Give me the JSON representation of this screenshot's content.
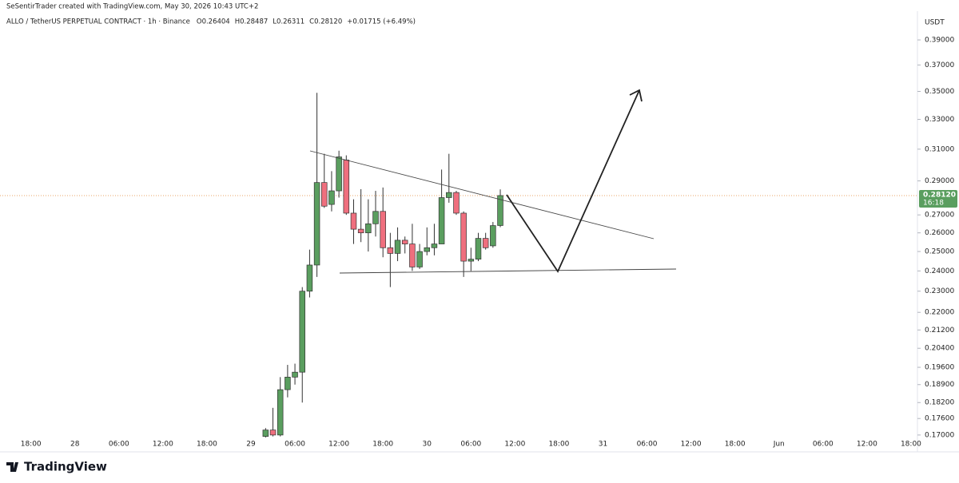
{
  "chart_data": {
    "type": "candlestick",
    "credit": "SeSentirTrader created with TradingView.com, May 30, 2026 10:43 UTC+2",
    "symbol": "ALLO / TetherUS PERPETUAL CONTRACT · 1h · Binance",
    "ohlc_header": [
      "O0.26404",
      "H0.28487",
      "L0.26311",
      "C0.28120",
      "+0.01715 (+6.49%)"
    ],
    "currency": "USDT",
    "brand": "TradingView",
    "current_price": {
      "value": 0.2812,
      "label": "0.28120"
    },
    "countdown": "16:18",
    "log_scale": true,
    "grid": false,
    "up_color": "#5a9e5f",
    "down_color": "#ef6f7e",
    "categories": [
      null,
      null,
      "18:00",
      null,
      null,
      null,
      null,
      null,
      "28",
      null,
      null,
      null,
      null,
      null,
      "06:00",
      null,
      null,
      null,
      null,
      null,
      "12:00",
      null,
      null,
      null,
      null,
      null,
      "18:00",
      null,
      null,
      null,
      null,
      null,
      "29",
      null,
      null,
      null,
      null,
      null,
      "06:00",
      null,
      null,
      null,
      null,
      null,
      "12:00",
      null,
      null,
      null,
      null,
      null,
      "18:00",
      null,
      null,
      null,
      null,
      null,
      "30",
      null,
      null,
      null,
      null,
      null,
      "06:00",
      null,
      null,
      null,
      null,
      null,
      "12:00",
      null,
      null,
      null,
      null,
      null,
      "18:00",
      null,
      null,
      null,
      null,
      null,
      "31",
      null,
      null,
      null,
      null,
      null,
      "06:00",
      null,
      null,
      null,
      null,
      null,
      "12:00",
      null,
      null,
      null,
      null,
      null,
      "18:00",
      null,
      null,
      null,
      null,
      null,
      "Jun",
      null,
      null,
      null,
      null,
      null,
      "06:00",
      null,
      null,
      null,
      null,
      null,
      "12:00",
      null,
      null,
      null,
      null,
      null,
      "18:00",
      null
    ],
    "open": [
      null,
      null,
      null,
      null,
      null,
      null,
      null,
      null,
      null,
      null,
      null,
      null,
      null,
      null,
      null,
      null,
      null,
      null,
      null,
      null,
      null,
      null,
      null,
      null,
      null,
      null,
      null,
      null,
      null,
      null,
      null,
      null,
      null,
      null,
      0.1695,
      0.1718,
      0.17,
      0.187,
      0.192,
      0.194,
      0.23,
      0.243,
      0.289,
      0.276,
      0.284,
      0.303,
      0.271,
      0.262,
      0.26,
      0.265,
      0.272,
      0.252,
      0.249,
      0.256,
      0.254,
      0.242,
      0.25,
      0.252,
      0.254,
      0.28,
      0.283,
      0.271,
      0.245,
      0.246,
      0.257,
      0.253,
      0.26404,
      null,
      null,
      null,
      null,
      null,
      null,
      null,
      null,
      null,
      null,
      null,
      null,
      null,
      null,
      null,
      null,
      null,
      null,
      null,
      null,
      null,
      null,
      null,
      null,
      null,
      null,
      null,
      null,
      null,
      null,
      null,
      null,
      null,
      null,
      null,
      null,
      null,
      null,
      null,
      null,
      null,
      null,
      null,
      null,
      null,
      null,
      null,
      null,
      null,
      null,
      null,
      null,
      null,
      null,
      null,
      null,
      null
    ],
    "high": [
      null,
      null,
      null,
      null,
      null,
      null,
      null,
      null,
      null,
      null,
      null,
      null,
      null,
      null,
      null,
      null,
      null,
      null,
      null,
      null,
      null,
      null,
      null,
      null,
      null,
      null,
      null,
      null,
      null,
      null,
      null,
      null,
      null,
      null,
      0.1725,
      0.18,
      0.192,
      0.197,
      0.1975,
      0.232,
      0.251,
      0.349,
      0.307,
      0.296,
      0.309,
      0.306,
      0.279,
      0.285,
      0.279,
      0.284,
      0.286,
      0.26,
      0.263,
      0.258,
      0.265,
      0.254,
      0.263,
      0.265,
      0.297,
      0.307,
      0.284,
      0.272,
      0.252,
      0.26,
      0.26,
      0.266,
      0.28487,
      null,
      null,
      null,
      null,
      null,
      null,
      null,
      null,
      null,
      null,
      null,
      null,
      null,
      null,
      null,
      null,
      null,
      null,
      null,
      null,
      null,
      null,
      null,
      null,
      null,
      null,
      null,
      null,
      null,
      null,
      null,
      null,
      null,
      null,
      null,
      null,
      null,
      null,
      null,
      null,
      null,
      null,
      null,
      null,
      null,
      null,
      null,
      null,
      null,
      null,
      null,
      null,
      null,
      null,
      null,
      null,
      null
    ],
    "low": [
      null,
      null,
      null,
      null,
      null,
      null,
      null,
      null,
      null,
      null,
      null,
      null,
      null,
      null,
      null,
      null,
      null,
      null,
      null,
      null,
      null,
      null,
      null,
      null,
      null,
      null,
      null,
      null,
      null,
      null,
      null,
      null,
      null,
      null,
      0.169,
      0.1695,
      0.1695,
      0.184,
      0.189,
      0.182,
      0.227,
      0.237,
      0.274,
      0.272,
      0.28,
      0.27,
      0.254,
      0.255,
      0.25,
      0.258,
      0.247,
      0.232,
      0.245,
      0.249,
      0.24,
      0.241,
      0.248,
      0.248,
      0.254,
      0.277,
      0.27,
      0.237,
      0.24,
      0.245,
      0.251,
      0.252,
      0.26311,
      null,
      null,
      null,
      null,
      null,
      null,
      null,
      null,
      null,
      null,
      null,
      null,
      null,
      null,
      null,
      null,
      null,
      null,
      null,
      null,
      null,
      null,
      null,
      null,
      null,
      null,
      null,
      null,
      null,
      null,
      null,
      null,
      null,
      null,
      null,
      null,
      null,
      null,
      null,
      null,
      null,
      null,
      null,
      null,
      null,
      null,
      null,
      null,
      null,
      null,
      null,
      null,
      null,
      null,
      null,
      null,
      null
    ],
    "close": [
      null,
      null,
      null,
      null,
      null,
      null,
      null,
      null,
      null,
      null,
      null,
      null,
      null,
      null,
      null,
      null,
      null,
      null,
      null,
      null,
      null,
      null,
      null,
      null,
      null,
      null,
      null,
      null,
      null,
      null,
      null,
      null,
      null,
      null,
      0.1718,
      0.17,
      0.187,
      0.192,
      0.194,
      0.23,
      0.243,
      0.289,
      0.275,
      0.284,
      0.305,
      0.271,
      0.262,
      0.26,
      0.265,
      0.272,
      0.252,
      0.249,
      0.256,
      0.254,
      0.242,
      0.25,
      0.252,
      0.254,
      0.28,
      0.283,
      0.271,
      0.245,
      0.246,
      0.257,
      0.252,
      0.264,
      0.2812,
      null,
      null,
      null,
      null,
      null,
      null,
      null,
      null,
      null,
      null,
      null,
      null,
      null,
      null,
      null,
      null,
      null,
      null,
      null,
      null,
      null,
      null,
      null,
      null,
      null,
      null,
      null,
      null,
      null,
      null,
      null,
      null,
      null,
      null,
      null,
      null,
      null,
      null,
      null,
      null,
      null,
      null,
      null,
      null,
      null,
      null,
      null,
      null,
      null,
      null,
      null,
      null,
      null,
      null,
      null,
      null,
      null
    ],
    "ylim": [
      0.1694,
      0.4136
    ],
    "yticks": [
      {
        "value": 0.39,
        "label": "0.39000"
      },
      {
        "value": 0.37,
        "label": "0.37000"
      },
      {
        "value": 0.35,
        "label": "0.35000"
      },
      {
        "value": 0.33,
        "label": "0.33000"
      },
      {
        "value": 0.31,
        "label": "0.31000"
      },
      {
        "value": 0.29,
        "label": "0.29000"
      },
      {
        "value": 0.27,
        "label": "0.27000"
      },
      {
        "value": 0.26,
        "label": "0.26000"
      },
      {
        "value": 0.25,
        "label": "0.25000"
      },
      {
        "value": 0.24,
        "label": "0.24000"
      },
      {
        "value": 0.23,
        "label": "0.23000"
      },
      {
        "value": 0.22,
        "label": "0.22000"
      },
      {
        "value": 0.212,
        "label": "0.21200"
      },
      {
        "value": 0.204,
        "label": "0.20400"
      },
      {
        "value": 0.196,
        "label": "0.19600"
      },
      {
        "value": 0.189,
        "label": "0.18900"
      },
      {
        "value": 0.182,
        "label": "0.18200"
      },
      {
        "value": 0.176,
        "label": "0.17600"
      },
      {
        "value": 0.17,
        "label": "0.17000"
      }
    ]
  }
}
